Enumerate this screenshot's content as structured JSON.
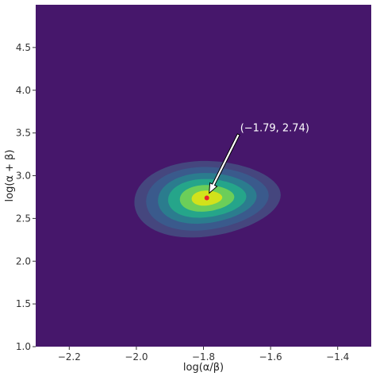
{
  "chart_data": {
    "type": "contourf",
    "title": "",
    "xlabel": "log(α/β)",
    "ylabel": "log(α + β)",
    "xlim": [
      -2.3,
      -1.3
    ],
    "ylim": [
      1.0,
      5.0
    ],
    "xticks": [
      -2.2,
      -2.0,
      -1.8,
      -1.6,
      -1.4
    ],
    "xtick_labels": [
      "−2.2",
      "−2.0",
      "−1.8",
      "−1.6",
      "−1.4"
    ],
    "yticks": [
      1.0,
      1.5,
      2.0,
      2.5,
      3.0,
      3.5,
      4.0,
      4.5
    ],
    "ytick_labels": [
      "1.0",
      "1.5",
      "2.0",
      "2.5",
      "3.0",
      "3.5",
      "4.0",
      "4.5"
    ],
    "grid": false,
    "mode": {
      "x": -1.79,
      "y": 2.74
    },
    "annotation": "(−1.79, 2.74)",
    "contour_levels": [
      {
        "level": 1,
        "center": [
          -1.79,
          2.74
        ],
        "half_width": 0.215,
        "half_height_up": 0.43,
        "half_height_down": 0.46,
        "color": "#45467e"
      },
      {
        "level": 2,
        "center": [
          -1.79,
          2.74
        ],
        "half_width": 0.18,
        "half_height_up": 0.36,
        "half_height_down": 0.38,
        "color": "#3a5a8c"
      },
      {
        "level": 3,
        "center": [
          -1.79,
          2.74
        ],
        "half_width": 0.145,
        "half_height_up": 0.29,
        "half_height_down": 0.3,
        "color": "#2b7c8e"
      },
      {
        "level": 4,
        "center": [
          -1.79,
          2.74
        ],
        "half_width": 0.115,
        "half_height_up": 0.22,
        "half_height_down": 0.23,
        "color": "#25a58a"
      },
      {
        "level": 5,
        "center": [
          -1.79,
          2.74
        ],
        "half_width": 0.08,
        "half_height_up": 0.15,
        "half_height_down": 0.16,
        "color": "#6cce59"
      },
      {
        "level": 6,
        "center": [
          -1.79,
          2.74
        ],
        "half_width": 0.045,
        "half_height_up": 0.085,
        "half_height_down": 0.09,
        "color": "#d2e21b"
      }
    ],
    "colors": {
      "background": "#46176b",
      "mode_marker": "#e8212b",
      "annotation_arrow": "#ffffff"
    }
  }
}
